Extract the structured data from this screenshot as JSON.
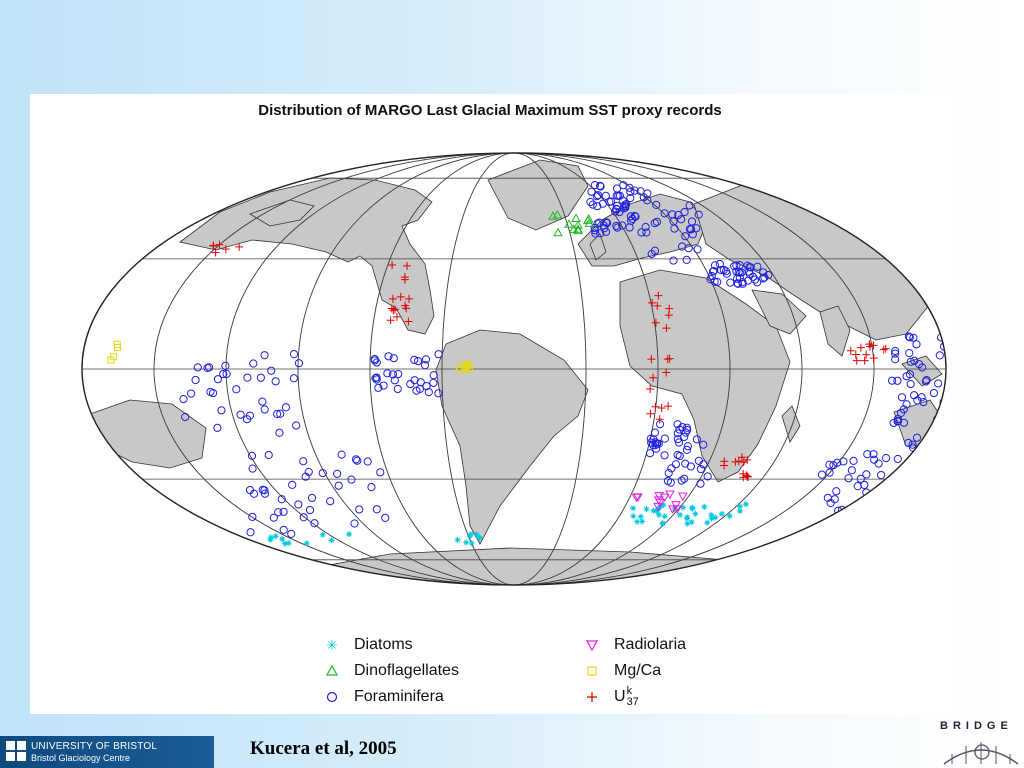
{
  "title": "Distribution of MARGO Last Glacial Maximum SST proxy records",
  "citation": "Kucera et al, 2005",
  "logo": {
    "line1": "UNIVERSITY OF BRISTOL",
    "line2": "Bristol Glaciology Centre"
  },
  "bridge_logo": "BRIDGE",
  "legend": [
    {
      "label": "Diatoms",
      "symbol": "star",
      "color": "#00c8e0"
    },
    {
      "label": "Dinoflagellates",
      "symbol": "triangle-up",
      "color": "#22b822"
    },
    {
      "label": "Foraminifera",
      "symbol": "circle",
      "color": "#2020e0"
    },
    {
      "label": "Radiolaria",
      "symbol": "triangle-down",
      "color": "#e020e0"
    },
    {
      "label": "Mg/Ca",
      "symbol": "square",
      "color": "#e8d800"
    },
    {
      "label": "U",
      "sup": "k",
      "sub": "37",
      "symbol": "plus",
      "color": "#e00000"
    }
  ],
  "colors": {
    "land": "#c8c8c8",
    "ocean": "#ffffff",
    "graticule": "#444444"
  }
}
